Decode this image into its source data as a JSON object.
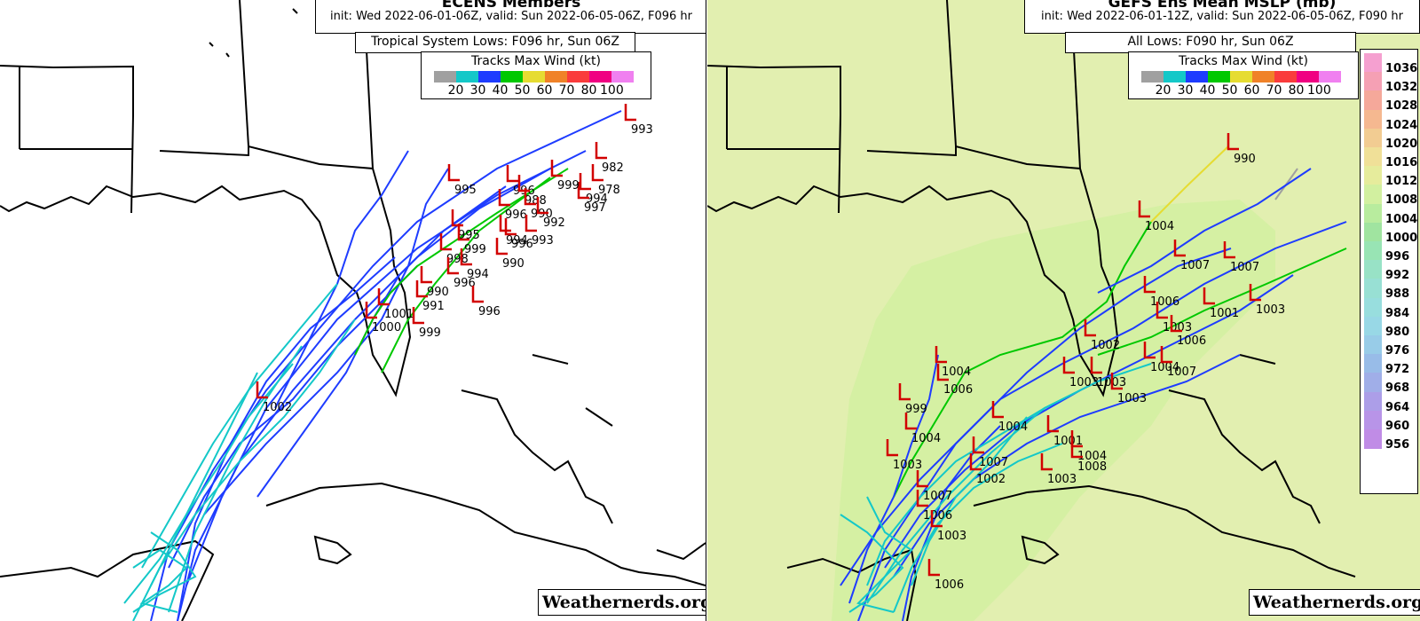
{
  "left_panel": {
    "title": "ECENS Members",
    "init_line": "init: Wed 2022-06-01-06Z, valid: Sun 2022-06-05-06Z, F096 hr",
    "system_line": "Tropical System Lows: F096 hr, Sun 06Z",
    "legend_title": "Tracks Max Wind (kt)",
    "watermark": "Weathernerds.org",
    "low_labels": [
      "993",
      "982",
      "978",
      "994",
      "997",
      "999",
      "995",
      "996",
      "988",
      "990",
      "992",
      "996",
      "994",
      "996",
      "993",
      "990",
      "995",
      "999",
      "998",
      "994",
      "996",
      "990",
      "991",
      "1001",
      "1000",
      "999",
      "996",
      "1002"
    ]
  },
  "right_panel": {
    "title": "GEFS Ens Mean MSLP (mb)",
    "init_line": "init: Wed 2022-06-01-12Z, valid: Sun 2022-06-05-06Z, F090 hr",
    "system_line": "All Lows: F090 hr, Sun 06Z",
    "legend_title": "Tracks Max Wind (kt)",
    "watermark": "Weathernerds.org",
    "low_labels": [
      "990",
      "1004",
      "1007",
      "1007",
      "1006",
      "1001",
      "1003",
      "1003",
      "1006",
      "1002",
      "1004",
      "1007",
      "1003",
      "1003",
      "1003",
      "1004",
      "1006",
      "999",
      "1004",
      "1004",
      "1001",
      "1004",
      "1003",
      "1007",
      "1003",
      "1008",
      "1002",
      "1007",
      "1006",
      "1003",
      "1006"
    ],
    "pressure_scale": [
      "1036",
      "1032",
      "1028",
      "1024",
      "1020",
      "1016",
      "1012",
      "1008",
      "1004",
      "1000",
      "996",
      "992",
      "988",
      "984",
      "980",
      "976",
      "972",
      "968",
      "964",
      "960",
      "956"
    ]
  },
  "wind_legend": {
    "labels": [
      "20",
      "30",
      "40",
      "50",
      "60",
      "70",
      "80",
      "100"
    ],
    "colors": [
      "#a0a0a0",
      "#14c8c8",
      "#1e3cff",
      "#00c800",
      "#e6dc32",
      "#f08228",
      "#fa3c3c",
      "#f00082",
      "#f080f0"
    ]
  },
  "pressure_colors": [
    "#f5a0d0",
    "#f5a0b4",
    "#f5a89a",
    "#f5b890",
    "#f2cc92",
    "#f0e098",
    "#e6ec9c",
    "#d2f0a0",
    "#b8ec9e",
    "#a0e4a0",
    "#98e4b4",
    "#98e2c6",
    "#98e0d4",
    "#98dede",
    "#98d8e6",
    "#98cce8",
    "#98bce8",
    "#a0aee8",
    "#ac9ee8",
    "#b894e8",
    "#c08ce6"
  ],
  "map_colors": {
    "track_blue": "#1e3cff",
    "track_cyan": "#14c8c8",
    "track_green": "#00c800",
    "track_yellow": "#e6dc32",
    "low_marker": "#d20000",
    "right_background": "#e2efb0",
    "right_shade": "#d2f0a0"
  }
}
